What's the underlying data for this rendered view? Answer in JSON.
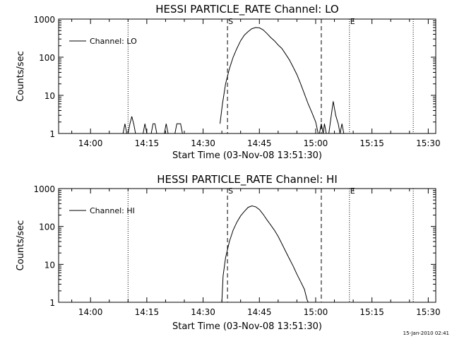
{
  "timestamp": "15-Jan-2010 02:41",
  "chart_data": [
    {
      "type": "line",
      "title": "HESSI PARTICLE_RATE Channel: LO",
      "xlabel": "Start Time (03-Nov-08 13:51:30)",
      "ylabel": "Counts/sec",
      "x_tick_labels": [
        "14:00",
        "14:15",
        "14:30",
        "14:45",
        "15:00",
        "15:15",
        "15:30"
      ],
      "y_tick_labels": [
        "1",
        "10",
        "100",
        "1000"
      ],
      "y_scale": "log",
      "ylim": [
        1,
        1000
      ],
      "xlim": [
        "13:51:30",
        "15:32:00"
      ],
      "legend": "top-left",
      "markers": {
        "start_label": "S",
        "end_label": "E"
      },
      "dashed_lines": [
        "14:36:30",
        "15:01:30"
      ],
      "dotted_lines": [
        "14:10:00",
        "15:09:00",
        "15:26:00"
      ],
      "series": [
        {
          "name": "Channel: LO",
          "segments": [
            [
              [
                "14:08:40",
                1
              ],
              [
                "14:09:10",
                1.8
              ],
              [
                "14:09:40",
                1
              ],
              [
                "14:10:00",
                1
              ],
              [
                "14:10:30",
                1.8
              ],
              [
                "14:11:00",
                2.8
              ],
              [
                "14:11:30",
                1.8
              ],
              [
                "14:12:00",
                1
              ],
              [
                "14:14:00",
                1
              ],
              [
                "14:14:30",
                1.8
              ],
              [
                "14:15:00",
                1
              ],
              [
                "14:16:10",
                1
              ],
              [
                "14:16:40",
                1.8
              ],
              [
                "14:17:10",
                1.8
              ],
              [
                "14:17:40",
                1
              ],
              [
                "14:19:40",
                1
              ],
              [
                "14:20:10",
                1.8
              ],
              [
                "14:20:40",
                1
              ],
              [
                "14:22:30",
                1
              ],
              [
                "14:23:00",
                1.8
              ],
              [
                "14:24:00",
                1.8
              ],
              [
                "14:24:30",
                1
              ]
            ],
            [
              [
                "14:34:30",
                1.8
              ],
              [
                "14:35:10",
                6
              ],
              [
                "14:36:00",
                20
              ],
              [
                "14:37:00",
                50
              ],
              [
                "14:38:00",
                100
              ],
              [
                "14:39:00",
                170
              ],
              [
                "14:40:00",
                270
              ],
              [
                "14:41:00",
                380
              ],
              [
                "14:42:00",
                470
              ],
              [
                "14:43:00",
                560
              ],
              [
                "14:44:00",
                600
              ],
              [
                "14:45:00",
                590
              ],
              [
                "14:46:00",
                520
              ],
              [
                "14:47:00",
                420
              ],
              [
                "14:48:00",
                330
              ],
              [
                "14:49:00",
                270
              ],
              [
                "14:50:00",
                210
              ],
              [
                "14:51:00",
                170
              ],
              [
                "14:52:00",
                120
              ],
              [
                "14:53:00",
                85
              ],
              [
                "14:54:00",
                55
              ],
              [
                "14:55:00",
                35
              ],
              [
                "14:56:00",
                20
              ],
              [
                "14:57:00",
                11
              ],
              [
                "14:58:00",
                6
              ],
              [
                "14:59:00",
                3.5
              ],
              [
                "15:00:00",
                2
              ],
              [
                "15:00:40",
                1
              ]
            ],
            [
              [
                "15:01:00",
                1
              ],
              [
                "15:01:30",
                1.8
              ],
              [
                "15:02:00",
                1
              ],
              [
                "15:02:20",
                1.8
              ],
              [
                "15:02:50",
                1
              ],
              [
                "15:03:30",
                1
              ],
              [
                "15:04:10",
                3
              ],
              [
                "15:04:40",
                7
              ],
              [
                "15:05:20",
                3
              ],
              [
                "15:06:00",
                1.8
              ],
              [
                "15:06:30",
                1
              ],
              [
                "15:07:00",
                1.8
              ],
              [
                "15:07:30",
                1
              ]
            ]
          ]
        }
      ]
    },
    {
      "type": "line",
      "title": "HESSI PARTICLE_RATE Channel: HI",
      "xlabel": "Start Time (03-Nov-08 13:51:30)",
      "ylabel": "Counts/sec",
      "x_tick_labels": [
        "14:00",
        "14:15",
        "14:30",
        "14:45",
        "15:00",
        "15:15",
        "15:30"
      ],
      "y_tick_labels": [
        "1",
        "10",
        "100",
        "1000"
      ],
      "y_scale": "log",
      "ylim": [
        1,
        1000
      ],
      "xlim": [
        "13:51:30",
        "15:32:00"
      ],
      "legend": "top-left",
      "markers": {
        "start_label": "S",
        "end_label": "E"
      },
      "dashed_lines": [
        "14:36:30",
        "15:01:30"
      ],
      "dotted_lines": [
        "14:10:00",
        "15:09:00",
        "15:26:00"
      ],
      "series": [
        {
          "name": "Channel: HI",
          "segments": [
            [
              [
                "14:35:00",
                1
              ],
              [
                "14:35:20",
                5
              ],
              [
                "14:36:00",
                15
              ],
              [
                "14:37:00",
                40
              ],
              [
                "14:38:00",
                80
              ],
              [
                "14:39:00",
                130
              ],
              [
                "14:40:00",
                190
              ],
              [
                "14:41:00",
                250
              ],
              [
                "14:42:00",
                320
              ],
              [
                "14:43:00",
                350
              ],
              [
                "14:44:00",
                330
              ],
              [
                "14:45:00",
                280
              ],
              [
                "14:46:00",
                210
              ],
              [
                "14:47:00",
                150
              ],
              [
                "14:48:00",
                110
              ],
              [
                "14:49:00",
                80
              ],
              [
                "14:50:00",
                55
              ],
              [
                "14:51:00",
                35
              ],
              [
                "14:52:00",
                22
              ],
              [
                "14:53:00",
                14
              ],
              [
                "14:54:00",
                9
              ],
              [
                "14:55:00",
                5.5
              ],
              [
                "14:56:00",
                3.5
              ],
              [
                "14:57:00",
                2.2
              ],
              [
                "14:57:40",
                1.2
              ],
              [
                "14:58:00",
                1
              ]
            ]
          ]
        }
      ]
    }
  ]
}
